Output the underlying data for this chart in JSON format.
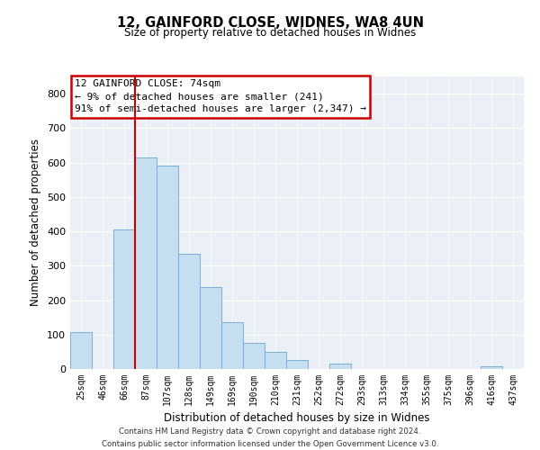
{
  "title": "12, GAINFORD CLOSE, WIDNES, WA8 4UN",
  "subtitle": "Size of property relative to detached houses in Widnes",
  "xlabel": "Distribution of detached houses by size in Widnes",
  "ylabel": "Number of detached properties",
  "bar_labels": [
    "25sqm",
    "46sqm",
    "66sqm",
    "87sqm",
    "107sqm",
    "128sqm",
    "149sqm",
    "169sqm",
    "190sqm",
    "210sqm",
    "231sqm",
    "252sqm",
    "272sqm",
    "293sqm",
    "313sqm",
    "334sqm",
    "355sqm",
    "375sqm",
    "396sqm",
    "416sqm",
    "437sqm"
  ],
  "bar_heights": [
    106,
    0,
    405,
    615,
    590,
    335,
    237,
    136,
    76,
    49,
    26,
    0,
    16,
    0,
    0,
    0,
    0,
    0,
    0,
    8,
    0
  ],
  "bar_color": "#c6dff0",
  "bar_edge_color": "#7bafd4",
  "marker_color": "#cc0000",
  "ylim": [
    0,
    850
  ],
  "yticks": [
    0,
    100,
    200,
    300,
    400,
    500,
    600,
    700,
    800
  ],
  "annotation_title": "12 GAINFORD CLOSE: 74sqm",
  "annotation_line1": "← 9% of detached houses are smaller (241)",
  "annotation_line2": "91% of semi-detached houses are larger (2,347) →",
  "footer1": "Contains HM Land Registry data © Crown copyright and database right 2024.",
  "footer2": "Contains public sector information licensed under the Open Government Licence v3.0.",
  "bg_color": "#eaf0f6"
}
